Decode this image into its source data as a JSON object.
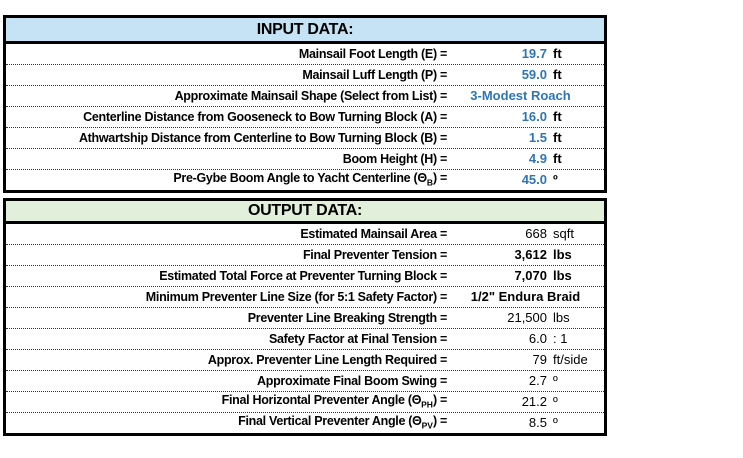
{
  "colors": {
    "input_header_bg": "#C5E3F5",
    "output_header_bg": "#E2EFDA",
    "input_value_text": "#2E75B6",
    "border": "#000000"
  },
  "input_table": {
    "title": "INPUT DATA:",
    "rows": [
      {
        "label": "Mainsail Foot Length (E) =",
        "value": "19.7",
        "unit": "ft"
      },
      {
        "label": "Mainsail Luff Length (P) =",
        "value": "59.0",
        "unit": "ft"
      },
      {
        "label": "Approximate Mainsail Shape (Select from List) =",
        "value": "3-Modest Roach",
        "unit": ""
      },
      {
        "label": "Centerline Distance from Gooseneck to Bow Turning Block (A) =",
        "value": "16.0",
        "unit": "ft"
      },
      {
        "label": "Athwartship Distance from Centerline to Bow Turning Block (B) =",
        "value": "1.5",
        "unit": "ft"
      },
      {
        "label": "Boom Height (H) =",
        "value": "4.9",
        "unit": "ft"
      },
      {
        "label": "Pre-Gybe Boom Angle to Yacht Centerline (Θ",
        "label_sub": "B",
        "label_end": ") =",
        "value": "45.0",
        "unit": "º"
      }
    ]
  },
  "output_table": {
    "title": "OUTPUT DATA:",
    "rows": [
      {
        "label": "Estimated Mainsail Area =",
        "value": "668",
        "unit": "sqft"
      },
      {
        "label": "Final Preventer Tension =",
        "value": "3,612",
        "unit": "lbs"
      },
      {
        "label": "Estimated Total Force at Preventer Turning Block =",
        "value": "7,070",
        "unit": "lbs"
      },
      {
        "label": "Minimum Preventer Line Size (for 5:1 Safety Factor) =",
        "value": "1/2\" Endura Braid",
        "unit": ""
      },
      {
        "label": "Preventer Line Breaking Strength =",
        "value": "21,500",
        "unit": "lbs"
      },
      {
        "label": "Safety Factor at Final Tension =",
        "value": "6.0",
        "unit": ": 1"
      },
      {
        "label": "Approx. Preventer Line Length Required =",
        "value": "79",
        "unit": "ft/side"
      },
      {
        "label": "Approximate Final Boom Swing =",
        "value": "2.7",
        "unit": "º"
      },
      {
        "label": "Final Horizontal Preventer Angle (Θ",
        "label_sub": "PH",
        "label_end": ") =",
        "value": "21.2",
        "unit": "º"
      },
      {
        "label": "Final Vertical Preventer Angle (Θ",
        "label_sub": "PV",
        "label_end": ") =",
        "value": "8.5",
        "unit": "º"
      }
    ]
  }
}
